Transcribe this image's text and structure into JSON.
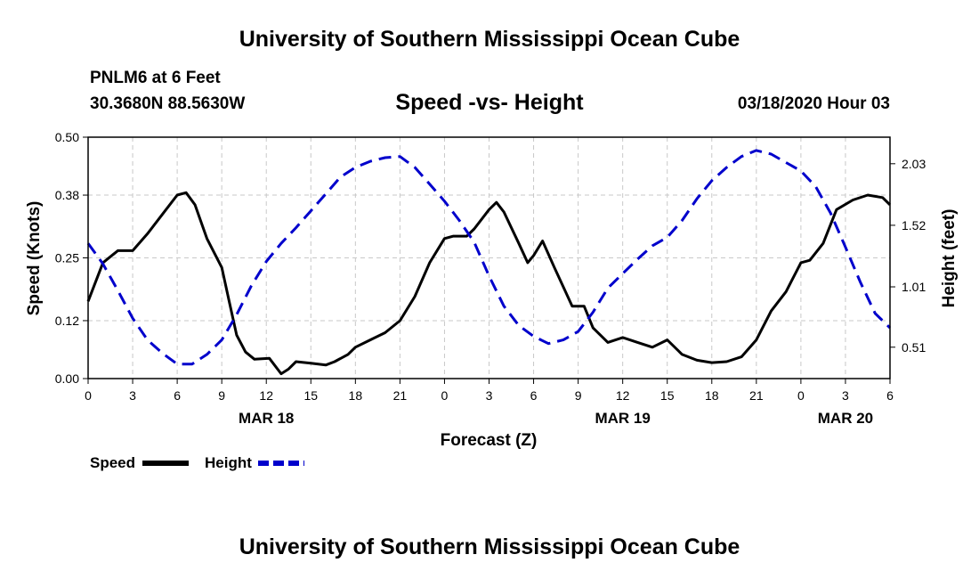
{
  "header": {
    "top_title": "University of Southern Mississippi Ocean Cube",
    "bottom_title": "University of Southern Mississippi Ocean Cube"
  },
  "meta": {
    "station": "PNLM6 at 6 Feet",
    "coords": "30.3680N 88.5630W",
    "date": "03/18/2020 Hour 03"
  },
  "colors": {
    "speed": "#000000",
    "height": "#0000cc",
    "grid": "#c8c8c8"
  },
  "chart_data": {
    "type": "line",
    "title": "Speed -vs- Height",
    "xlabel": "Forecast (Z)",
    "ylabel": "Speed (Knots)",
    "y2label": "Height (feet)",
    "x_range": [
      0,
      54
    ],
    "ylim": [
      0,
      0.5
    ],
    "y2lim": [
      0.25,
      2.25
    ],
    "y_ticks": [
      "0.00",
      "0.12",
      "0.25",
      "0.38",
      "0.50"
    ],
    "y2_ticks": [
      "0.51",
      "1.01",
      "1.52",
      "2.03"
    ],
    "x_ticks": [
      {
        "x": 0,
        "label": "0"
      },
      {
        "x": 3,
        "label": "3"
      },
      {
        "x": 6,
        "label": "6"
      },
      {
        "x": 9,
        "label": "9"
      },
      {
        "x": 12,
        "label": "12"
      },
      {
        "x": 15,
        "label": "15"
      },
      {
        "x": 18,
        "label": "18"
      },
      {
        "x": 21,
        "label": "21"
      },
      {
        "x": 24,
        "label": "0"
      },
      {
        "x": 27,
        "label": "3"
      },
      {
        "x": 30,
        "label": "6"
      },
      {
        "x": 33,
        "label": "9"
      },
      {
        "x": 36,
        "label": "12"
      },
      {
        "x": 39,
        "label": "15"
      },
      {
        "x": 42,
        "label": "18"
      },
      {
        "x": 45,
        "label": "21"
      },
      {
        "x": 48,
        "label": "0"
      },
      {
        "x": 51,
        "label": "3"
      },
      {
        "x": 54,
        "label": "6"
      }
    ],
    "date_labels": [
      {
        "x": 12,
        "label": "MAR 18"
      },
      {
        "x": 36,
        "label": "MAR 19"
      },
      {
        "x": 51,
        "label": "MAR 20"
      }
    ],
    "series": [
      {
        "name": "Speed",
        "style": "solid",
        "color": "#000000",
        "points": [
          [
            0,
            0.16
          ],
          [
            1,
            0.24
          ],
          [
            2,
            0.265
          ],
          [
            3,
            0.265
          ],
          [
            4,
            0.3
          ],
          [
            5,
            0.34
          ],
          [
            6,
            0.38
          ],
          [
            6.6,
            0.385
          ],
          [
            7.2,
            0.36
          ],
          [
            8,
            0.29
          ],
          [
            9,
            0.23
          ],
          [
            9.5,
            0.16
          ],
          [
            10,
            0.09
          ],
          [
            10.6,
            0.055
          ],
          [
            11.2,
            0.04
          ],
          [
            12.2,
            0.042
          ],
          [
            13,
            0.01
          ],
          [
            13.5,
            0.02
          ],
          [
            14,
            0.035
          ],
          [
            15,
            0.032
          ],
          [
            16,
            0.028
          ],
          [
            16.6,
            0.035
          ],
          [
            17.5,
            0.05
          ],
          [
            18,
            0.065
          ],
          [
            19,
            0.08
          ],
          [
            20,
            0.095
          ],
          [
            21,
            0.12
          ],
          [
            22,
            0.17
          ],
          [
            23,
            0.24
          ],
          [
            24,
            0.29
          ],
          [
            24.6,
            0.295
          ],
          [
            25.5,
            0.295
          ],
          [
            26,
            0.31
          ],
          [
            27,
            0.35
          ],
          [
            27.5,
            0.365
          ],
          [
            28,
            0.345
          ],
          [
            29,
            0.28
          ],
          [
            29.6,
            0.24
          ],
          [
            30,
            0.255
          ],
          [
            30.6,
            0.285
          ],
          [
            31.4,
            0.23
          ],
          [
            32,
            0.19
          ],
          [
            32.6,
            0.15
          ],
          [
            33.4,
            0.15
          ],
          [
            34,
            0.105
          ],
          [
            35,
            0.075
          ],
          [
            36,
            0.085
          ],
          [
            37,
            0.075
          ],
          [
            38,
            0.065
          ],
          [
            39,
            0.08
          ],
          [
            40,
            0.05
          ],
          [
            41,
            0.038
          ],
          [
            42,
            0.033
          ],
          [
            43,
            0.035
          ],
          [
            44,
            0.045
          ],
          [
            45,
            0.08
          ],
          [
            46,
            0.14
          ],
          [
            47,
            0.18
          ],
          [
            48,
            0.24
          ],
          [
            48.6,
            0.245
          ],
          [
            49.5,
            0.28
          ],
          [
            50.4,
            0.35
          ],
          [
            51.5,
            0.37
          ],
          [
            52.5,
            0.38
          ],
          [
            53.5,
            0.375
          ],
          [
            54,
            0.36
          ]
        ]
      },
      {
        "name": "Height",
        "style": "dashed",
        "color": "#0000cc",
        "points": [
          [
            0,
            1.37
          ],
          [
            1,
            1.2
          ],
          [
            2,
            0.98
          ],
          [
            3,
            0.75
          ],
          [
            4,
            0.57
          ],
          [
            5,
            0.46
          ],
          [
            6,
            0.37
          ],
          [
            7,
            0.37
          ],
          [
            8,
            0.45
          ],
          [
            9,
            0.57
          ],
          [
            10,
            0.78
          ],
          [
            11,
            1.02
          ],
          [
            12,
            1.22
          ],
          [
            13,
            1.37
          ],
          [
            14,
            1.5
          ],
          [
            15,
            1.64
          ],
          [
            16,
            1.78
          ],
          [
            17,
            1.92
          ],
          [
            18,
            2.0
          ],
          [
            19,
            2.05
          ],
          [
            20,
            2.08
          ],
          [
            21,
            2.09
          ],
          [
            22,
            2.0
          ],
          [
            23,
            1.86
          ],
          [
            24,
            1.72
          ],
          [
            25,
            1.56
          ],
          [
            26,
            1.38
          ],
          [
            27,
            1.1
          ],
          [
            28,
            0.85
          ],
          [
            29,
            0.69
          ],
          [
            30,
            0.6
          ],
          [
            31,
            0.54
          ],
          [
            32,
            0.57
          ],
          [
            33,
            0.64
          ],
          [
            34,
            0.8
          ],
          [
            35,
            1.0
          ],
          [
            36,
            1.12
          ],
          [
            37,
            1.24
          ],
          [
            38,
            1.35
          ],
          [
            39,
            1.42
          ],
          [
            40,
            1.56
          ],
          [
            41,
            1.74
          ],
          [
            42,
            1.89
          ],
          [
            43,
            2.0
          ],
          [
            44,
            2.09
          ],
          [
            45,
            2.14
          ],
          [
            46,
            2.11
          ],
          [
            47,
            2.04
          ],
          [
            48,
            1.97
          ],
          [
            49,
            1.84
          ],
          [
            50,
            1.62
          ],
          [
            51,
            1.34
          ],
          [
            52,
            1.05
          ],
          [
            53,
            0.79
          ],
          [
            54,
            0.67
          ]
        ]
      }
    ],
    "legend": [
      {
        "name": "Speed",
        "style": "solid",
        "color": "#000000"
      },
      {
        "name": "Height",
        "style": "dashed",
        "color": "#0000cc"
      }
    ]
  }
}
